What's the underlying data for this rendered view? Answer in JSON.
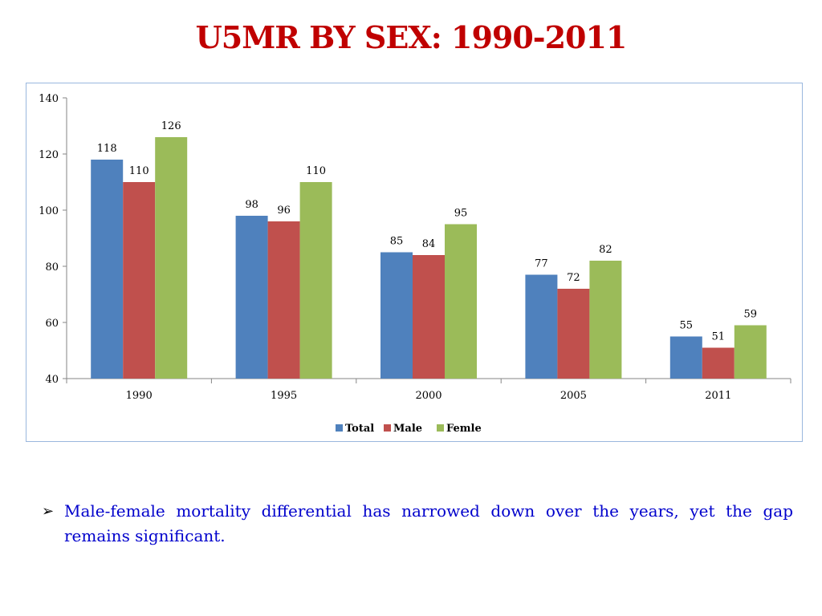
{
  "slide": {
    "title": "U5MR BY SEX: 1990-2011",
    "bullet_text": "Male-female mortality differential has narrowed down over the years, yet the gap remains significant.",
    "bullet_icon": "arrowhead-bullet-icon"
  },
  "chart_data": {
    "type": "bar",
    "categories": [
      "1990",
      "1995",
      "2000",
      "2005",
      "2011"
    ],
    "series": [
      {
        "name": "Total",
        "color": "#4f81bd",
        "values": [
          118,
          98,
          85,
          77,
          55
        ]
      },
      {
        "name": "Male",
        "color": "#c0504d",
        "values": [
          110,
          96,
          84,
          72,
          51
        ]
      },
      {
        "name": "Femle",
        "color": "#9bbb59",
        "values": [
          126,
          110,
          95,
          82,
          59
        ]
      }
    ],
    "ylim": [
      40,
      140
    ],
    "yticks": [
      "40",
      "60",
      "80",
      "100",
      "120",
      "140"
    ],
    "grid": false,
    "legend": "bottom",
    "data_labels": true
  }
}
